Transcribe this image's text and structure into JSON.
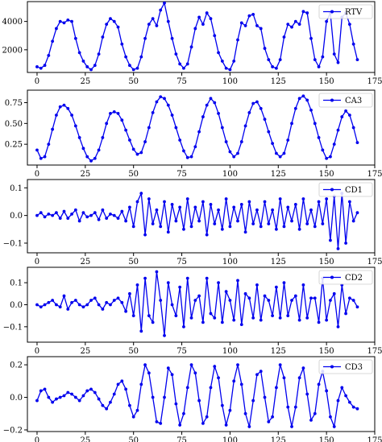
{
  "chart_data": [
    {
      "type": "line",
      "xlim": [
        -5,
        175
      ],
      "ylim": [
        400,
        5400
      ],
      "xticks": [
        0,
        25,
        50,
        75,
        100,
        125,
        150,
        175
      ],
      "yticks": [
        2000,
        4000
      ],
      "ytick_labels": [
        "2000",
        "4000"
      ],
      "xtick_labels": [
        "0",
        "25",
        "50",
        "75",
        "100",
        "125",
        "150",
        "175"
      ],
      "legend": "top-right",
      "grid": false,
      "color": "#0000ee",
      "series": [
        {
          "name": "RTV",
          "x": [
            0,
            2,
            4,
            6,
            8,
            10,
            12,
            14,
            16,
            18,
            20,
            22,
            24,
            26,
            28,
            30,
            32,
            34,
            36,
            38,
            40,
            42,
            44,
            46,
            48,
            50,
            52,
            54,
            56,
            58,
            60,
            62,
            64,
            66,
            68,
            70,
            72,
            74,
            76,
            78,
            80,
            82,
            84,
            86,
            88,
            90,
            92,
            94,
            96,
            98,
            100,
            102,
            104,
            106,
            108,
            110,
            112,
            114,
            116,
            118,
            120,
            122,
            124,
            126,
            128,
            130,
            132,
            134,
            136,
            138,
            140,
            142,
            144,
            146,
            148,
            150,
            152,
            154,
            156,
            158,
            160,
            162,
            164,
            166
          ],
          "y": [
            800,
            700,
            900,
            1600,
            2600,
            3500,
            4000,
            3900,
            4100,
            4000,
            2800,
            1800,
            1200,
            800,
            600,
            900,
            1700,
            2900,
            3800,
            4200,
            4000,
            3600,
            2400,
            1500,
            900,
            600,
            700,
            1500,
            2800,
            3800,
            4200,
            3700,
            4800,
            5300,
            4000,
            2800,
            1700,
            1000,
            700,
            1000,
            2200,
            3500,
            4300,
            3800,
            4600,
            4200,
            3000,
            1800,
            1200,
            700,
            600,
            1200,
            2700,
            3900,
            3700,
            4400,
            4500,
            3700,
            3500,
            2100,
            1300,
            800,
            700,
            1300,
            2900,
            3800,
            3600,
            4000,
            3800,
            4700,
            4600,
            2800,
            1300,
            800,
            1500,
            4000,
            4600,
            1700,
            1100,
            4300,
            4600,
            3800,
            2400,
            1300
          ]
        }
      ]
    },
    {
      "type": "line",
      "xlim": [
        -5,
        175
      ],
      "ylim": [
        0.0,
        0.9
      ],
      "xticks": [
        0,
        25,
        50,
        75,
        100,
        125,
        150,
        175
      ],
      "yticks": [
        0.25,
        0.5,
        0.75
      ],
      "ytick_labels": [
        "0.25",
        "0.50",
        "0.75"
      ],
      "xtick_labels": [
        "0",
        "25",
        "50",
        "75",
        "100",
        "125",
        "150",
        "175"
      ],
      "legend": "top-right",
      "grid": false,
      "color": "#0000ee",
      "series": [
        {
          "name": "CA3",
          "x": [
            0,
            2,
            4,
            6,
            8,
            10,
            12,
            14,
            16,
            18,
            20,
            22,
            24,
            26,
            28,
            30,
            32,
            34,
            36,
            38,
            40,
            42,
            44,
            46,
            48,
            50,
            52,
            54,
            56,
            58,
            60,
            62,
            64,
            66,
            68,
            70,
            72,
            74,
            76,
            78,
            80,
            82,
            84,
            86,
            88,
            90,
            92,
            94,
            96,
            98,
            100,
            102,
            104,
            106,
            108,
            110,
            112,
            114,
            116,
            118,
            120,
            122,
            124,
            126,
            128,
            130,
            132,
            134,
            136,
            138,
            140,
            142,
            144,
            146,
            148,
            150,
            152,
            154,
            156,
            158,
            160,
            162,
            164,
            166
          ],
          "y": [
            0.18,
            0.08,
            0.1,
            0.25,
            0.43,
            0.6,
            0.7,
            0.72,
            0.68,
            0.6,
            0.47,
            0.33,
            0.2,
            0.1,
            0.05,
            0.08,
            0.18,
            0.33,
            0.5,
            0.62,
            0.64,
            0.62,
            0.54,
            0.42,
            0.3,
            0.19,
            0.13,
            0.15,
            0.28,
            0.45,
            0.63,
            0.76,
            0.82,
            0.8,
            0.72,
            0.6,
            0.45,
            0.3,
            0.17,
            0.09,
            0.1,
            0.22,
            0.4,
            0.58,
            0.72,
            0.8,
            0.75,
            0.62,
            0.45,
            0.28,
            0.16,
            0.1,
            0.14,
            0.28,
            0.47,
            0.63,
            0.74,
            0.76,
            0.68,
            0.55,
            0.4,
            0.26,
            0.14,
            0.1,
            0.14,
            0.3,
            0.5,
            0.68,
            0.8,
            0.83,
            0.78,
            0.66,
            0.5,
            0.33,
            0.18,
            0.08,
            0.1,
            0.25,
            0.42,
            0.58,
            0.65,
            0.6,
            0.45,
            0.27
          ]
        }
      ]
    },
    {
      "type": "line",
      "xlim": [
        -5,
        175
      ],
      "ylim": [
        -0.135,
        0.13
      ],
      "xticks": [
        0,
        25,
        50,
        75,
        100,
        125,
        150,
        175
      ],
      "yticks": [
        -0.1,
        0.0,
        0.1
      ],
      "ytick_labels": [
        "−0.1",
        "0.0",
        "0.1"
      ],
      "xtick_labels": [
        "0",
        "25",
        "50",
        "75",
        "100",
        "125",
        "150",
        "175"
      ],
      "legend": "top-right",
      "grid": false,
      "color": "#0000ee",
      "series": [
        {
          "name": "CD1",
          "x": [
            0,
            2,
            4,
            6,
            8,
            10,
            12,
            14,
            16,
            18,
            20,
            22,
            24,
            26,
            28,
            30,
            32,
            34,
            36,
            38,
            40,
            42,
            44,
            46,
            48,
            50,
            52,
            54,
            56,
            58,
            60,
            62,
            64,
            66,
            68,
            70,
            72,
            74,
            76,
            78,
            80,
            82,
            84,
            86,
            88,
            90,
            92,
            94,
            96,
            98,
            100,
            102,
            104,
            106,
            108,
            110,
            112,
            114,
            116,
            118,
            120,
            122,
            124,
            126,
            128,
            130,
            132,
            134,
            136,
            138,
            140,
            142,
            144,
            146,
            148,
            150,
            152,
            154,
            156,
            158,
            160,
            162,
            164,
            166
          ],
          "y": [
            0.0,
            0.01,
            -0.005,
            0.005,
            0.0,
            0.01,
            -0.01,
            0.015,
            -0.01,
            0.005,
            0.02,
            -0.02,
            0.01,
            -0.005,
            0.0,
            0.01,
            -0.015,
            0.02,
            -0.01,
            0.005,
            0.0,
            -0.01,
            0.015,
            -0.02,
            0.03,
            -0.04,
            0.05,
            0.08,
            -0.07,
            0.06,
            -0.03,
            0.02,
            -0.04,
            0.05,
            -0.06,
            0.04,
            -0.02,
            0.03,
            -0.05,
            0.06,
            -0.04,
            0.03,
            -0.02,
            0.05,
            -0.07,
            0.04,
            -0.03,
            0.02,
            -0.05,
            0.06,
            -0.04,
            0.03,
            -0.02,
            0.04,
            -0.06,
            0.05,
            -0.03,
            0.02,
            -0.04,
            0.05,
            -0.03,
            0.02,
            -0.05,
            0.06,
            -0.04,
            0.03,
            -0.02,
            0.04,
            -0.05,
            0.06,
            -0.03,
            0.02,
            -0.04,
            0.05,
            -0.03,
            0.06,
            -0.09,
            0.07,
            -0.12,
            0.08,
            -0.1,
            0.05,
            -0.02,
            0.01
          ]
        }
      ]
    },
    {
      "type": "line",
      "xlim": [
        -5,
        175
      ],
      "ylim": [
        -0.17,
        0.17
      ],
      "xticks": [
        0,
        25,
        50,
        75,
        100,
        125,
        150,
        175
      ],
      "yticks": [
        -0.1,
        0.0,
        0.1
      ],
      "ytick_labels": [
        "−0.1",
        "0.0",
        "0.1"
      ],
      "xtick_labels": [
        "0",
        "25",
        "50",
        "75",
        "100",
        "125",
        "150",
        "175"
      ],
      "legend": "top-right",
      "grid": false,
      "color": "#0000ee",
      "series": [
        {
          "name": "CD2",
          "x": [
            0,
            2,
            4,
            6,
            8,
            10,
            12,
            14,
            16,
            18,
            20,
            22,
            24,
            26,
            28,
            30,
            32,
            34,
            36,
            38,
            40,
            42,
            44,
            46,
            48,
            50,
            52,
            54,
            56,
            58,
            60,
            62,
            64,
            66,
            68,
            70,
            72,
            74,
            76,
            78,
            80,
            82,
            84,
            86,
            88,
            90,
            92,
            94,
            96,
            98,
            100,
            102,
            104,
            106,
            108,
            110,
            112,
            114,
            116,
            118,
            120,
            122,
            124,
            126,
            128,
            130,
            132,
            134,
            136,
            138,
            140,
            142,
            144,
            146,
            148,
            150,
            152,
            154,
            156,
            158,
            160,
            162,
            164,
            166
          ],
          "y": [
            0.0,
            -0.01,
            0.0,
            0.01,
            0.02,
            0.0,
            -0.01,
            0.04,
            -0.02,
            0.01,
            0.02,
            0.0,
            -0.01,
            0.0,
            0.02,
            0.03,
            0.0,
            -0.02,
            0.01,
            0.0,
            0.02,
            0.03,
            0.01,
            -0.03,
            0.05,
            -0.05,
            0.09,
            -0.12,
            0.12,
            -0.05,
            -0.08,
            0.15,
            0.02,
            -0.14,
            0.1,
            0.0,
            -0.05,
            0.08,
            -0.1,
            0.12,
            -0.06,
            0.02,
            0.04,
            -0.08,
            0.12,
            -0.04,
            -0.06,
            0.1,
            -0.08,
            0.06,
            0.02,
            -0.07,
            0.11,
            -0.09,
            0.05,
            0.03,
            -0.06,
            0.09,
            -0.07,
            0.04,
            0.02,
            -0.05,
            0.08,
            -0.06,
            0.1,
            -0.05,
            0.02,
            0.04,
            -0.07,
            0.09,
            -0.06,
            0.03,
            0.03,
            -0.08,
            0.12,
            -0.07,
            0.02,
            0.05,
            -0.1,
            0.09,
            -0.04,
            0.03,
            0.02,
            -0.01
          ]
        }
      ]
    },
    {
      "type": "line",
      "xlim": [
        -5,
        175
      ],
      "ylim": [
        -0.21,
        0.25
      ],
      "xticks": [
        0,
        25,
        50,
        75,
        100,
        125,
        150,
        175
      ],
      "yticks": [
        -0.2,
        0.0,
        0.2
      ],
      "ytick_labels": [
        "−0.2",
        "0.0",
        "0.2"
      ],
      "xtick_labels": [
        "0",
        "25",
        "50",
        "75",
        "100",
        "125",
        "150",
        "175"
      ],
      "legend": "top-right",
      "grid": false,
      "color": "#0000ee",
      "series": [
        {
          "name": "CD3",
          "x": [
            0,
            2,
            4,
            6,
            8,
            10,
            12,
            14,
            16,
            18,
            20,
            22,
            24,
            26,
            28,
            30,
            32,
            34,
            36,
            38,
            40,
            42,
            44,
            46,
            48,
            50,
            52,
            54,
            56,
            58,
            60,
            62,
            64,
            66,
            68,
            70,
            72,
            74,
            76,
            78,
            80,
            82,
            84,
            86,
            88,
            90,
            92,
            94,
            96,
            98,
            100,
            102,
            104,
            106,
            108,
            110,
            112,
            114,
            116,
            118,
            120,
            122,
            124,
            126,
            128,
            130,
            132,
            134,
            136,
            138,
            140,
            142,
            144,
            146,
            148,
            150,
            152,
            154,
            156,
            158,
            160,
            162,
            164,
            166
          ],
          "y": [
            -0.02,
            0.04,
            0.05,
            0.0,
            -0.03,
            -0.01,
            0.0,
            0.01,
            0.03,
            0.02,
            0.0,
            -0.02,
            0.01,
            0.04,
            0.05,
            0.03,
            -0.01,
            -0.05,
            -0.07,
            -0.03,
            0.02,
            0.08,
            0.1,
            0.05,
            -0.05,
            -0.12,
            -0.08,
            0.08,
            0.2,
            0.15,
            0.0,
            -0.15,
            -0.16,
            0.0,
            0.18,
            0.14,
            -0.04,
            -0.17,
            -0.1,
            0.06,
            0.2,
            0.15,
            -0.02,
            -0.16,
            -0.12,
            0.06,
            0.19,
            0.12,
            -0.05,
            -0.17,
            -0.08,
            0.1,
            0.2,
            0.08,
            -0.1,
            -0.18,
            -0.02,
            0.14,
            0.16,
            0.0,
            -0.15,
            -0.12,
            0.06,
            0.2,
            0.12,
            -0.06,
            -0.18,
            -0.06,
            0.12,
            0.18,
            0.02,
            -0.14,
            -0.1,
            0.08,
            0.16,
            0.04,
            -0.12,
            -0.18,
            -0.02,
            0.06,
            0.01,
            -0.03,
            -0.06,
            -0.07
          ]
        }
      ]
    }
  ]
}
